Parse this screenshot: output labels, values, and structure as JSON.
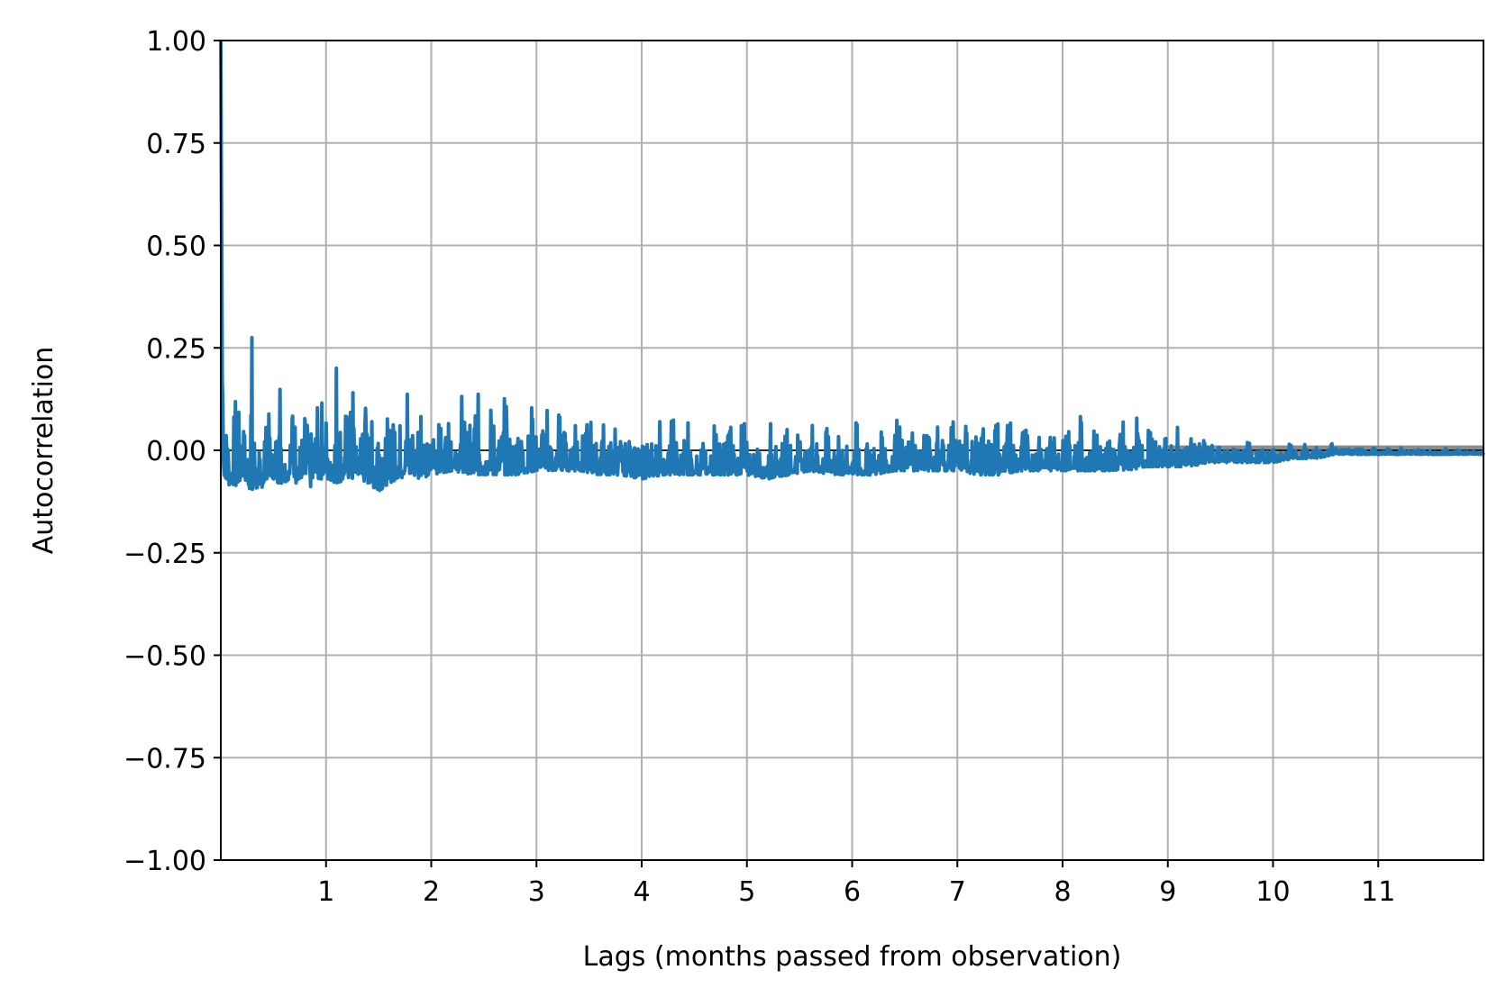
{
  "chart_data": {
    "type": "line",
    "title": "",
    "xlabel": "Lags (months passed from observation)",
    "ylabel": "Autocorrelation",
    "xlim": [
      0,
      12
    ],
    "ylim": [
      -1.0,
      1.0
    ],
    "grid": true,
    "xticks": [
      1,
      2,
      3,
      4,
      5,
      6,
      7,
      8,
      9,
      10,
      11
    ],
    "xtick_labels": [
      "1",
      "2",
      "3",
      "4",
      "5",
      "6",
      "7",
      "8",
      "9",
      "10",
      "11"
    ],
    "yticks": [
      -1.0,
      -0.75,
      -0.5,
      -0.25,
      0.0,
      0.25,
      0.5,
      0.75,
      1.0
    ],
    "ytick_labels": [
      "−1.00",
      "−0.75",
      "−0.50",
      "−0.25",
      "0.00",
      "0.25",
      "0.50",
      "0.75",
      "1.00"
    ],
    "confidence_band_color": "#808080",
    "series": [
      {
        "color": "#1f77b4",
        "x": [
          0,
          0.02,
          0.05,
          0.1,
          0.15,
          0.2,
          0.25,
          0.3,
          0.35,
          0.4,
          0.45,
          0.5,
          0.55,
          0.6,
          0.65,
          0.7,
          0.75,
          0.8,
          0.85,
          0.9,
          0.95,
          1.0,
          1.1,
          1.2,
          1.3,
          1.4,
          1.5,
          1.6,
          1.7,
          1.8,
          1.9,
          2.0,
          2.2,
          2.4,
          2.6,
          2.8,
          3.0,
          3.2,
          3.4,
          3.6,
          3.8,
          4.0,
          4.2,
          4.4,
          4.6,
          4.8,
          5.0,
          5.2,
          5.4,
          5.6,
          5.8,
          6.0,
          6.2,
          6.4,
          6.6,
          6.8,
          7.0,
          7.2,
          7.4,
          7.6,
          7.8,
          8.0,
          8.2,
          8.4,
          8.6,
          8.8,
          9.0,
          9.2,
          9.4,
          9.6,
          9.8,
          10.0,
          10.2,
          10.4,
          10.6,
          10.8,
          11.0,
          11.2,
          11.4,
          11.6,
          11.8,
          12.0
        ],
        "y": [
          1.0,
          0.29,
          0.2,
          0.16,
          0.27,
          0.15,
          0.2,
          0.3,
          0.05,
          0.1,
          0.23,
          0.06,
          0.26,
          0.08,
          0.2,
          0.25,
          0.1,
          0.2,
          0.05,
          0.3,
          0.1,
          0.22,
          0.24,
          0.22,
          0.24,
          0.2,
          0.17,
          0.19,
          0.18,
          0.17,
          0.18,
          0.16,
          0.14,
          0.15,
          0.14,
          0.11,
          0.12,
          0.14,
          0.11,
          0.1,
          0.1,
          0.08,
          0.09,
          0.09,
          0.09,
          0.09,
          0.08,
          0.07,
          0.08,
          0.09,
          0.1,
          0.07,
          0.07,
          0.08,
          0.09,
          0.1,
          0.09,
          0.1,
          0.1,
          0.11,
          0.1,
          0.08,
          0.08,
          0.07,
          0.08,
          0.08,
          0.05,
          0.06,
          0.04,
          0.03,
          0.02,
          0.02,
          0.02,
          0.02,
          0.02,
          0.01,
          0.005,
          0.01,
          0.005,
          0.005,
          0.004,
          0.0
        ],
        "y_min": [
          1.0,
          -0.05,
          -0.09,
          -0.08,
          -0.09,
          -0.07,
          -0.08,
          -0.11,
          -0.09,
          -0.09,
          -0.08,
          -0.07,
          -0.08,
          -0.08,
          -0.07,
          -0.08,
          -0.08,
          -0.07,
          -0.09,
          -0.07,
          -0.07,
          -0.07,
          -0.08,
          -0.07,
          -0.07,
          -0.08,
          -0.1,
          -0.08,
          -0.07,
          -0.06,
          -0.07,
          -0.06,
          -0.05,
          -0.06,
          -0.06,
          -0.06,
          -0.05,
          -0.05,
          -0.05,
          -0.06,
          -0.06,
          -0.07,
          -0.06,
          -0.06,
          -0.06,
          -0.06,
          -0.06,
          -0.07,
          -0.06,
          -0.05,
          -0.06,
          -0.06,
          -0.06,
          -0.05,
          -0.05,
          -0.05,
          -0.05,
          -0.06,
          -0.06,
          -0.05,
          -0.05,
          -0.05,
          -0.05,
          -0.05,
          -0.05,
          -0.04,
          -0.04,
          -0.04,
          -0.03,
          -0.03,
          -0.03,
          -0.03,
          -0.02,
          -0.02,
          -0.01,
          -0.01,
          -0.01,
          -0.01,
          -0.01,
          -0.01,
          -0.01,
          -0.01
        ]
      }
    ]
  }
}
